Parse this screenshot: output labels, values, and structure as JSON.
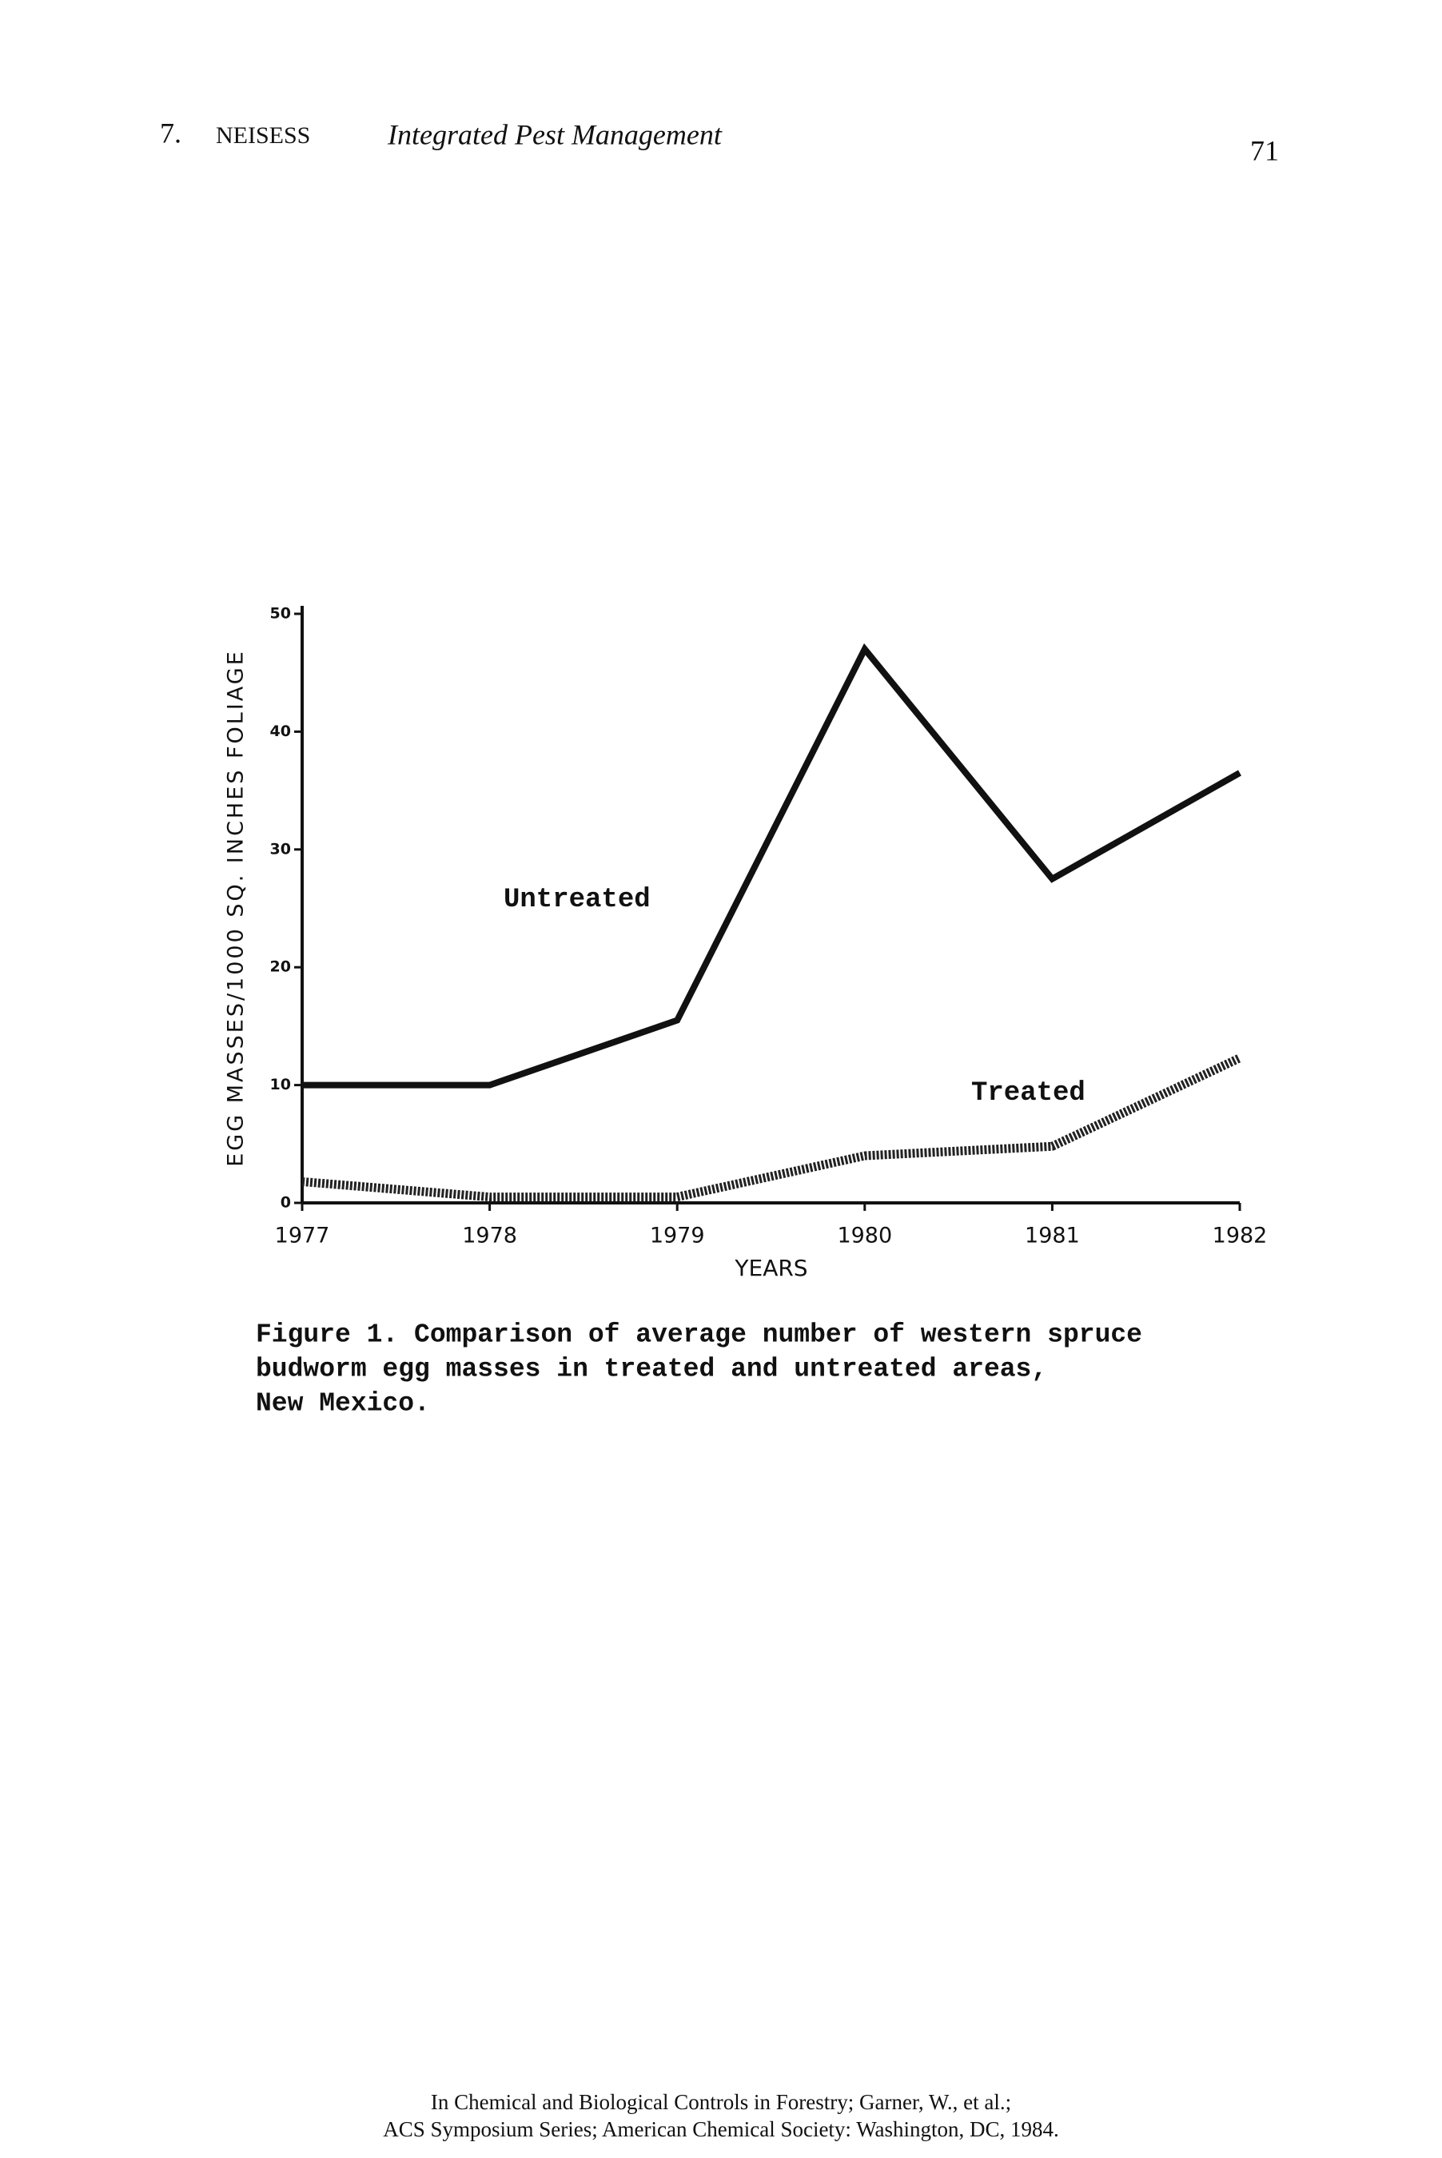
{
  "header": {
    "chapter": "7.",
    "author": "NEISESS",
    "title": "Integrated Pest Management",
    "page": "71"
  },
  "chart_data": {
    "type": "line",
    "x": [
      1977,
      1978,
      1979,
      1980,
      1981,
      1982
    ],
    "xlim": [
      1977,
      1982
    ],
    "xticks": [
      1977,
      1978,
      1979,
      1980,
      1981,
      1982
    ],
    "ylim": [
      0,
      50
    ],
    "yticks": [
      0,
      10,
      20,
      30,
      40,
      50
    ],
    "x_label": "YEARS",
    "y_label": "EGG MASSES/1000 SQ. INCHES FOLIAGE",
    "series": [
      {
        "name": "Untreated",
        "color": "#111111",
        "values": [
          10,
          10,
          15.5,
          47,
          27.5,
          36.5
        ]
      },
      {
        "name": "Treated",
        "color": "#222222",
        "values": [
          1.8,
          0.5,
          0.5,
          4,
          4.8,
          12.3
        ]
      }
    ]
  },
  "caption": [
    "Figure 1.  Comparison of average number of western spruce",
    "budworm egg masses in treated and untreated areas,",
    "New Mexico."
  ],
  "footer": [
    "In Chemical and Biological Controls in Forestry; Garner, W., et al.;",
    "ACS Symposium Series; American Chemical Society: Washington, DC, 1984."
  ]
}
